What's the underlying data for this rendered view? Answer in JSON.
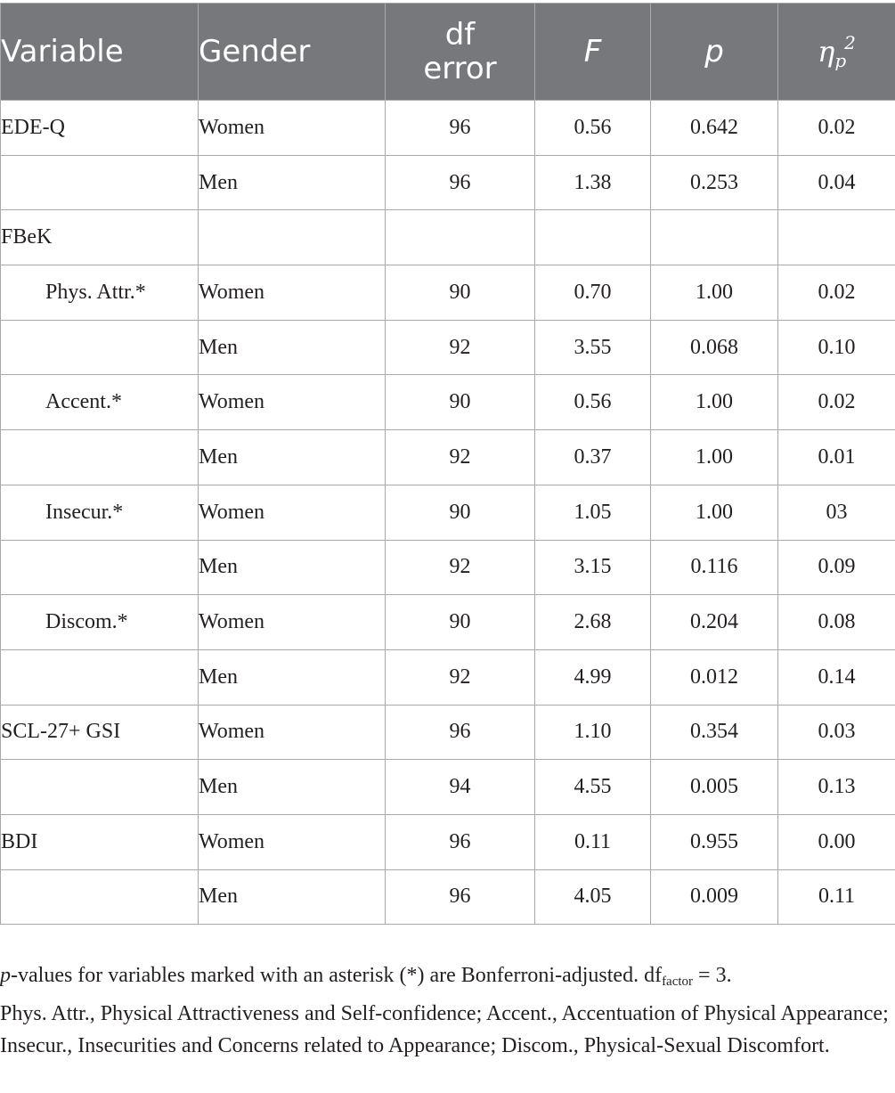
{
  "table": {
    "headers": {
      "variable": "Variable",
      "gender": "Gender",
      "df_error_line1": "df",
      "df_error_line2": "error",
      "f": "F",
      "p": "p",
      "eta_symbol": "η",
      "eta_sub": "p",
      "eta_sup": "2"
    },
    "rows": [
      {
        "variable": "EDE-Q",
        "indent": false,
        "gender": "Women",
        "df_error": "96",
        "f": "0.56",
        "p": "0.642",
        "eta": "0.02"
      },
      {
        "variable": "",
        "indent": false,
        "gender": "Men",
        "df_error": "96",
        "f": "1.38",
        "p": "0.253",
        "eta": "0.04"
      },
      {
        "variable": "FBeK",
        "indent": false,
        "gender": "",
        "df_error": "",
        "f": "",
        "p": "",
        "eta": ""
      },
      {
        "variable": "Phys. Attr.*",
        "indent": true,
        "gender": "Women",
        "df_error": "90",
        "f": "0.70",
        "p": "1.00",
        "eta": "0.02"
      },
      {
        "variable": "",
        "indent": false,
        "gender": "Men",
        "df_error": "92",
        "f": "3.55",
        "p": "0.068",
        "eta": "0.10"
      },
      {
        "variable": "Accent.*",
        "indent": true,
        "gender": "Women",
        "df_error": "90",
        "f": "0.56",
        "p": "1.00",
        "eta": "0.02"
      },
      {
        "variable": "",
        "indent": false,
        "gender": "Men",
        "df_error": "92",
        "f": "0.37",
        "p": "1.00",
        "eta": "0.01"
      },
      {
        "variable": "Insecur.*",
        "indent": true,
        "gender": "Women",
        "df_error": "90",
        "f": "1.05",
        "p": "1.00",
        "eta": "03"
      },
      {
        "variable": "",
        "indent": false,
        "gender": "Men",
        "df_error": "92",
        "f": "3.15",
        "p": "0.116",
        "eta": "0.09"
      },
      {
        "variable": "Discom.*",
        "indent": true,
        "gender": "Women",
        "df_error": "90",
        "f": "2.68",
        "p": "0.204",
        "eta": "0.08"
      },
      {
        "variable": "",
        "indent": false,
        "gender": "Men",
        "df_error": "92",
        "f": "4.99",
        "p": "0.012",
        "eta": "0.14"
      },
      {
        "variable": "SCL-27+ GSI",
        "indent": false,
        "gender": "Women",
        "df_error": "96",
        "f": "1.10",
        "p": "0.354",
        "eta": "0.03"
      },
      {
        "variable": "",
        "indent": false,
        "gender": "Men",
        "df_error": "94",
        "f": "4.55",
        "p": "0.005",
        "eta": "0.13"
      },
      {
        "variable": "BDI",
        "indent": false,
        "gender": "Women",
        "df_error": "96",
        "f": "0.11",
        "p": "0.955",
        "eta": "0.00"
      },
      {
        "variable": "",
        "indent": false,
        "gender": "Men",
        "df_error": "96",
        "f": "4.05",
        "p": "0.009",
        "eta": "0.11"
      }
    ]
  },
  "footnote": {
    "p_italic": "p",
    "line1_text": "-values for variables marked with an asterisk (*) are Bonferroni-adjusted. df",
    "df_sub": "factor",
    "df_value": " = 3.",
    "abbreviations": "Phys. Attr., Physical Attractiveness and Self-confidence; Accent., Accentuation of Physical Appearance; Insecur., Insecurities and Concerns related to Appearance; Discom., Physical-Sexual Discomfort."
  }
}
